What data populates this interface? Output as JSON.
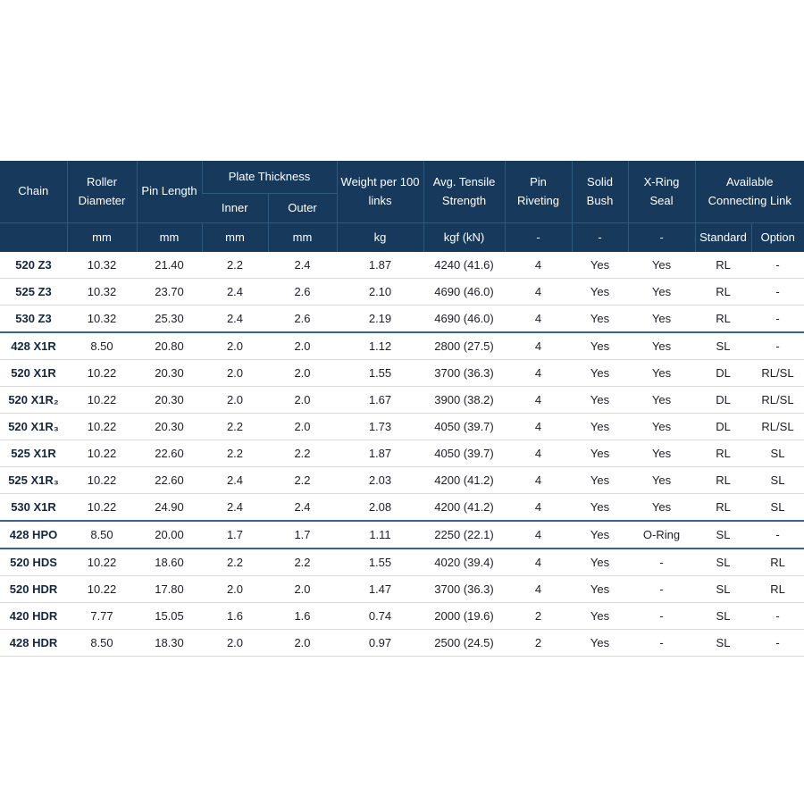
{
  "table": {
    "header": {
      "chain": "Chain",
      "roller_diameter": "Roller Diameter",
      "pin_length": "Pin Length",
      "plate_thickness": "Plate Thickness",
      "inner": "Inner",
      "outer": "Outer",
      "weight": "Weight per 100 links",
      "tensile": "Avg. Tensile Strength",
      "pin_riveting": "Pin Riveting",
      "solid_bush": "Solid Bush",
      "xring_seal": "X-Ring Seal",
      "connecting_link": "Available Connecting Link"
    },
    "units": [
      "",
      "mm",
      "mm",
      "mm",
      "mm",
      "kg",
      "kgf (kN)",
      "-",
      "-",
      "-",
      "Standard",
      "Option"
    ],
    "rows": [
      {
        "chain": "520 Z3",
        "group_start": false,
        "values": [
          "10.32",
          "21.40",
          "2.2",
          "2.4",
          "1.87",
          "4240 (41.6)",
          "4",
          "Yes",
          "Yes",
          "RL",
          "-"
        ]
      },
      {
        "chain": "525 Z3",
        "group_start": false,
        "values": [
          "10.32",
          "23.70",
          "2.4",
          "2.6",
          "2.10",
          "4690 (46.0)",
          "4",
          "Yes",
          "Yes",
          "RL",
          "-"
        ]
      },
      {
        "chain": "530 Z3",
        "group_start": false,
        "values": [
          "10.32",
          "25.30",
          "2.4",
          "2.6",
          "2.19",
          "4690 (46.0)",
          "4",
          "Yes",
          "Yes",
          "RL",
          "-"
        ]
      },
      {
        "chain": "428 X1R",
        "group_start": true,
        "values": [
          "8.50",
          "20.80",
          "2.0",
          "2.0",
          "1.12",
          "2800 (27.5)",
          "4",
          "Yes",
          "Yes",
          "SL",
          "-"
        ]
      },
      {
        "chain": "520 X1R",
        "group_start": false,
        "values": [
          "10.22",
          "20.30",
          "2.0",
          "2.0",
          "1.55",
          "3700 (36.3)",
          "4",
          "Yes",
          "Yes",
          "DL",
          "RL/SL"
        ]
      },
      {
        "chain": "520 X1R₂",
        "group_start": false,
        "values": [
          "10.22",
          "20.30",
          "2.0",
          "2.0",
          "1.67",
          "3900 (38.2)",
          "4",
          "Yes",
          "Yes",
          "DL",
          "RL/SL"
        ]
      },
      {
        "chain": "520 X1R₃",
        "group_start": false,
        "values": [
          "10.22",
          "20.30",
          "2.2",
          "2.0",
          "1.73",
          "4050 (39.7)",
          "4",
          "Yes",
          "Yes",
          "DL",
          "RL/SL"
        ]
      },
      {
        "chain": "525 X1R",
        "group_start": false,
        "values": [
          "10.22",
          "22.60",
          "2.2",
          "2.2",
          "1.87",
          "4050 (39.7)",
          "4",
          "Yes",
          "Yes",
          "RL",
          "SL"
        ]
      },
      {
        "chain": "525 X1R₃",
        "group_start": false,
        "values": [
          "10.22",
          "22.60",
          "2.4",
          "2.2",
          "2.03",
          "4200 (41.2)",
          "4",
          "Yes",
          "Yes",
          "RL",
          "SL"
        ]
      },
      {
        "chain": "530 X1R",
        "group_start": false,
        "values": [
          "10.22",
          "24.90",
          "2.4",
          "2.4",
          "2.08",
          "4200 (41.2)",
          "4",
          "Yes",
          "Yes",
          "RL",
          "SL"
        ]
      },
      {
        "chain": "428 HPO",
        "group_start": true,
        "values": [
          "8.50",
          "20.00",
          "1.7",
          "1.7",
          "1.11",
          "2250 (22.1)",
          "4",
          "Yes",
          "O-Ring",
          "SL",
          "-"
        ]
      },
      {
        "chain": "520 HDS",
        "group_start": true,
        "values": [
          "10.22",
          "18.60",
          "2.2",
          "2.2",
          "1.55",
          "4020 (39.4)",
          "4",
          "Yes",
          "-",
          "SL",
          "RL"
        ]
      },
      {
        "chain": "520 HDR",
        "group_start": false,
        "values": [
          "10.22",
          "17.80",
          "2.0",
          "2.0",
          "1.47",
          "3700 (36.3)",
          "4",
          "Yes",
          "-",
          "SL",
          "RL"
        ]
      },
      {
        "chain": "420 HDR",
        "group_start": false,
        "values": [
          "7.77",
          "15.05",
          "1.6",
          "1.6",
          "0.74",
          "2000 (19.6)",
          "2",
          "Yes",
          "-",
          "SL",
          "-"
        ]
      },
      {
        "chain": "428 HDR",
        "group_start": false,
        "values": [
          "8.50",
          "18.30",
          "2.0",
          "2.0",
          "0.97",
          "2500 (24.5)",
          "2",
          "Yes",
          "-",
          "SL",
          "-"
        ]
      }
    ]
  }
}
